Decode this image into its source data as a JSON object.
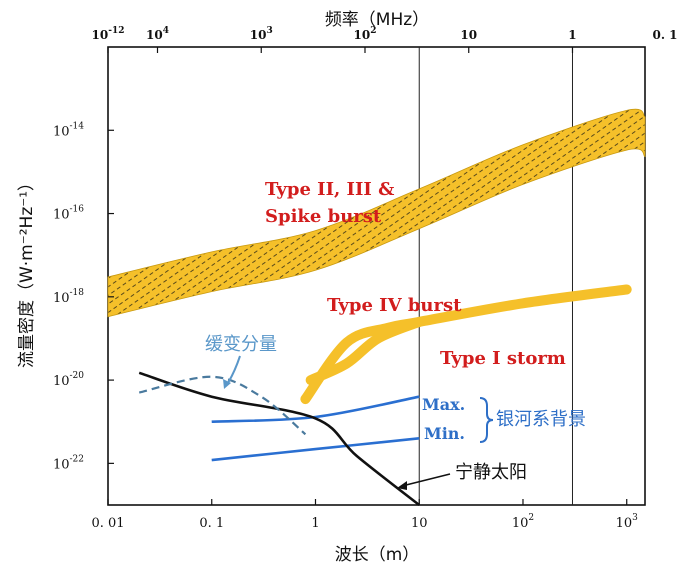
{
  "chart_data": {
    "type": "line",
    "x_scale": "log",
    "y_scale": "log",
    "xlabel": "波长（m）",
    "x_top_label": "频率（MHz）",
    "ylabel": "流量密度（W·m⁻²Hz⁻¹）",
    "xlim": [
      0.01,
      1500
    ],
    "ylim": [
      1e-23,
      1e-12
    ],
    "x_ticks": [
      {
        "value": 0.01,
        "label": "0. 01"
      },
      {
        "value": 0.1,
        "label": "0. 1"
      },
      {
        "value": 1,
        "label": "1"
      },
      {
        "value": 10,
        "label": "10"
      },
      {
        "value": 100,
        "label": "10",
        "exp": "2"
      },
      {
        "value": 1000,
        "label": "10",
        "exp": "3"
      }
    ],
    "x_top_ticks": [
      {
        "wavelength": 0.01,
        "label": "10",
        "exp": "-12",
        "small": true
      },
      {
        "wavelength": 0.03,
        "label": "10",
        "exp": "4"
      },
      {
        "wavelength": 0.3,
        "label": "10",
        "exp": "3"
      },
      {
        "wavelength": 3,
        "label": "10",
        "exp": "2"
      },
      {
        "wavelength": 30,
        "label": "10"
      },
      {
        "wavelength": 300,
        "label": "1"
      },
      {
        "wavelength": 3000,
        "label": "0. 1"
      }
    ],
    "y_ticks": [
      {
        "value": 1e-14,
        "label": "10",
        "exp": "-14"
      },
      {
        "value": 1e-16,
        "label": "10",
        "exp": "-16"
      },
      {
        "value": 1e-18,
        "label": "10",
        "exp": "-18"
      },
      {
        "value": 1e-20,
        "label": "10",
        "exp": "-20"
      },
      {
        "value": 1e-22,
        "label": "10",
        "exp": "-22"
      }
    ],
    "vertical_lines": [
      10,
      300
    ],
    "series": [
      {
        "name": "Type II, III & Spike burst",
        "style": "band",
        "points": [
          [
            0.01,
            1e-18
          ],
          [
            0.1,
            4e-18
          ],
          [
            1,
            1.3e-17
          ],
          [
            10,
            1.3e-16
          ],
          [
            100,
            1.5e-15
          ],
          [
            1000,
            1e-14
          ],
          [
            1500,
            7e-15
          ]
        ],
        "band_factor": 3
      },
      {
        "name": "Type IV burst",
        "style": "thick",
        "points": [
          [
            0.9,
            1e-20
          ],
          [
            2,
            2.5e-20
          ],
          [
            4,
            1e-19
          ],
          [
            10,
            2.5e-19
          ]
        ]
      },
      {
        "name": "Type I storm",
        "style": "thick",
        "points": [
          [
            0.8,
            3.5e-21
          ],
          [
            2,
            8e-20
          ],
          [
            5,
            1.8e-19
          ],
          [
            10,
            2.5e-19
          ],
          [
            100,
            7e-19
          ],
          [
            1000,
            1.5e-18
          ]
        ]
      },
      {
        "name": "Max.",
        "style": "line",
        "points": [
          [
            0.1,
            1e-21
          ],
          [
            1,
            1.3e-21
          ],
          [
            10,
            4e-21
          ]
        ]
      },
      {
        "name": "Min.",
        "style": "line",
        "points": [
          [
            0.1,
            1.2e-22
          ],
          [
            1,
            2.2e-22
          ],
          [
            10,
            4e-22
          ]
        ]
      },
      {
        "name": "宁静太阳",
        "style": "line",
        "points": [
          [
            0.02,
            1.5e-20
          ],
          [
            0.1,
            4e-21
          ],
          [
            1,
            1.2e-21
          ],
          [
            2.5,
            1.5e-22
          ],
          [
            10,
            1e-23
          ]
        ]
      },
      {
        "name": "缓变分量",
        "style": "dashed",
        "points": [
          [
            0.02,
            5e-21
          ],
          [
            0.1,
            1.2e-20
          ],
          [
            0.3,
            4e-21
          ],
          [
            0.8,
            5e-22
          ]
        ]
      }
    ],
    "annotations": [
      {
        "text": "Type II, III &",
        "color": "#d21d1d"
      },
      {
        "text": "Spike burst",
        "color": "#d21d1d"
      },
      {
        "text": "Type IV burst",
        "color": "#d21d1d"
      },
      {
        "text": "Type I storm",
        "color": "#d21d1d"
      },
      {
        "text": "Max.",
        "color": "#2e6fc7"
      },
      {
        "text": "Min.",
        "color": "#2e6fc7"
      },
      {
        "text": "银河系背景",
        "color": "#2e6fc7"
      },
      {
        "text": "缓变分量",
        "color": "#5a97c9"
      },
      {
        "text": "宁静太阳",
        "color": "#111111"
      }
    ],
    "colors": {
      "burst_band": "#f5c02a",
      "burst_line": "#f5c02a",
      "galactic": "#2a6fd1",
      "quiet_sun": "#111111",
      "slow_component": "#4a7a9e"
    }
  }
}
